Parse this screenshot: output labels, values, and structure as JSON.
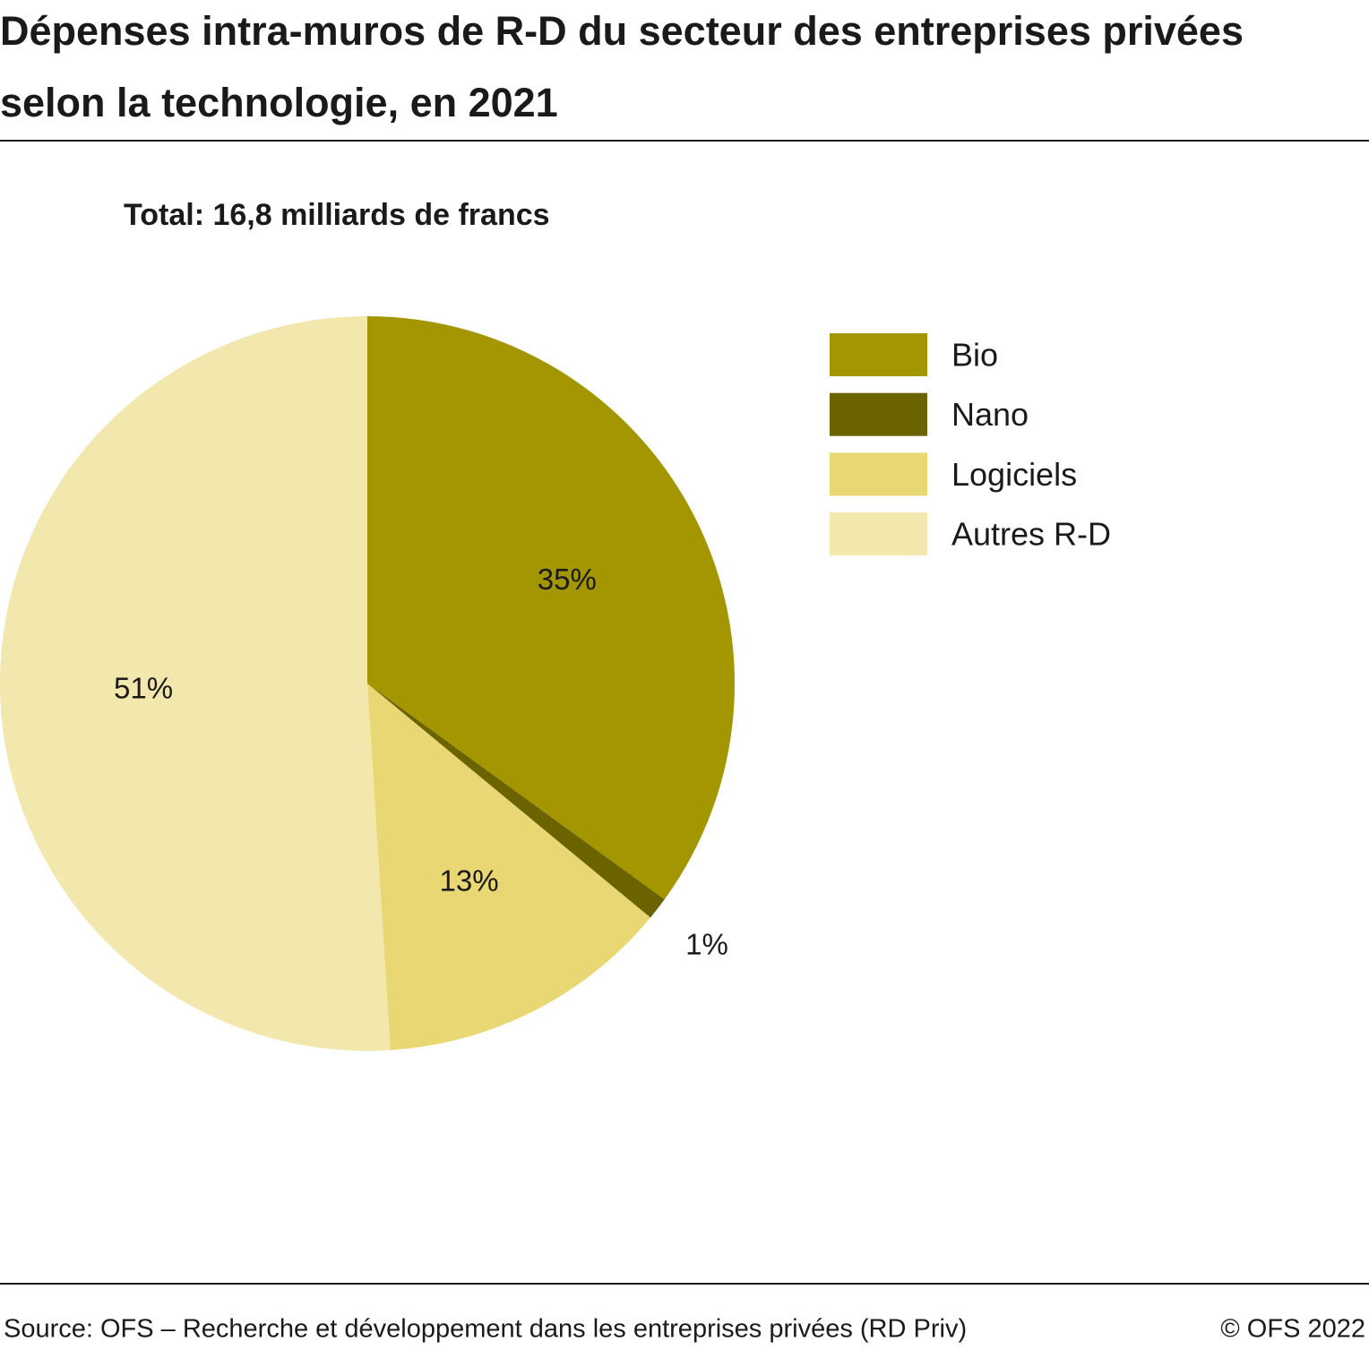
{
  "chart_data": {
    "type": "pie",
    "title": "Dépenses intra-muros de R-D du secteur des entreprises privées selon la technologie, en 2021",
    "subtitle": "Total: 16,8 milliards de francs",
    "categories": [
      "Bio",
      "Nano",
      "Logiciels",
      "Autres R-D"
    ],
    "values": [
      35,
      1,
      13,
      51
    ],
    "value_labels": [
      "35%",
      "1%",
      "13%",
      "51%"
    ],
    "colors": [
      "#a39600",
      "#6b6300",
      "#e8d773",
      "#f2e7ad"
    ],
    "legend": "right",
    "source": "Source: OFS – Recherche et développement dans les entreprises privées (RD Priv)",
    "copyright": "© OFS 2022"
  }
}
